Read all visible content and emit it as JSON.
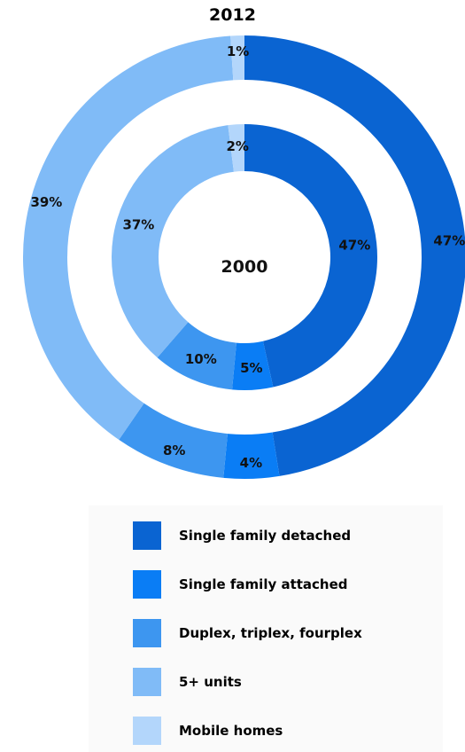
{
  "chart_data": {
    "type": "pie",
    "variant": "nested-donut",
    "title": "2012",
    "center_label": "2000",
    "categories": [
      "Single family detached",
      "Single family attached",
      "Duplex, triplex, fourplex",
      "5+ units",
      "Mobile homes"
    ],
    "colors": [
      "#0a64d2",
      "#0a7df5",
      "#3d96f0",
      "#80bbf7",
      "#b3d6fb"
    ],
    "series": [
      {
        "name": "2012",
        "values": [
          47,
          4,
          8,
          39,
          1
        ],
        "labels": [
          "47%",
          "4%",
          "8%",
          "39%",
          "1%"
        ]
      },
      {
        "name": "2000",
        "values": [
          47,
          5,
          10,
          37,
          2
        ],
        "labels": [
          "47%",
          "5%",
          "10%",
          "37%",
          "2%"
        ]
      }
    ]
  },
  "legend": {
    "items": [
      {
        "label": "Single family detached",
        "color": "#0a64d2"
      },
      {
        "label": "Single family attached",
        "color": "#0a7df5"
      },
      {
        "label": "Duplex, triplex, fourplex",
        "color": "#3d96f0"
      },
      {
        "label": "5+ units",
        "color": "#80bbf7"
      },
      {
        "label": "Mobile homes",
        "color": "#b3d6fb"
      }
    ]
  }
}
